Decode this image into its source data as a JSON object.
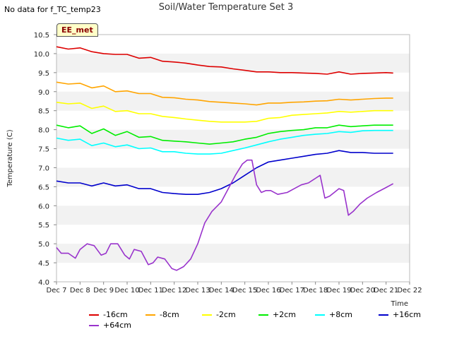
{
  "note": "No data for f_TC_temp23",
  "chart_data": {
    "type": "line",
    "title": "Soil/Water Temperature Set 3",
    "xlabel": "Time",
    "ylabel": "Temperature (C)",
    "badge": "EE_met",
    "x_ticks": [
      "Dec 7",
      "Dec 8",
      "Dec 9",
      "Dec 10",
      "Dec 11",
      "Dec 12",
      "Dec 13",
      "Dec 14",
      "Dec 15",
      "Dec 16",
      "Dec 17",
      "Dec 18",
      "Dec 19",
      "Dec 20",
      "Dec 21",
      "Dec 22"
    ],
    "xlim": [
      7,
      22
    ],
    "y_ticks": [
      "4.0",
      "4.5",
      "5.0",
      "5.5",
      "6.0",
      "6.5",
      "7.0",
      "7.5",
      "8.0",
      "8.5",
      "9.0",
      "9.5",
      "10.0",
      "10.5"
    ],
    "ylim": [
      4.0,
      10.5
    ],
    "grid": "horizontal bands",
    "legend_position": "bottom",
    "series": [
      {
        "name": "-16cm",
        "color": "#dd0000",
        "x": [
          7.0,
          7.5,
          8.0,
          8.5,
          9.0,
          9.5,
          10.0,
          10.5,
          11.0,
          11.5,
          12.0,
          12.5,
          13.0,
          13.5,
          14.0,
          14.5,
          15.0,
          15.5,
          16.0,
          16.5,
          17.0,
          17.5,
          18.0,
          18.5,
          19.0,
          19.5,
          20.0,
          20.5,
          21.0,
          21.3
        ],
        "y": [
          10.18,
          10.12,
          10.15,
          10.05,
          10.0,
          9.98,
          9.98,
          9.88,
          9.9,
          9.8,
          9.78,
          9.75,
          9.7,
          9.66,
          9.65,
          9.6,
          9.56,
          9.52,
          9.52,
          9.5,
          9.5,
          9.49,
          9.48,
          9.46,
          9.52,
          9.46,
          9.48,
          9.49,
          9.5,
          9.49
        ]
      },
      {
        "name": "-8cm",
        "color": "#ffa500",
        "x": [
          7.0,
          7.5,
          8.0,
          8.5,
          9.0,
          9.5,
          10.0,
          10.5,
          11.0,
          11.5,
          12.0,
          12.5,
          13.0,
          13.5,
          14.0,
          14.5,
          15.0,
          15.5,
          16.0,
          16.5,
          17.0,
          17.5,
          18.0,
          18.5,
          19.0,
          19.5,
          20.0,
          20.5,
          21.0,
          21.3
        ],
        "y": [
          9.25,
          9.2,
          9.22,
          9.1,
          9.15,
          9.0,
          9.02,
          8.95,
          8.95,
          8.85,
          8.84,
          8.8,
          8.78,
          8.74,
          8.72,
          8.7,
          8.68,
          8.65,
          8.7,
          8.7,
          8.72,
          8.73,
          8.75,
          8.76,
          8.8,
          8.78,
          8.8,
          8.82,
          8.83,
          8.83
        ]
      },
      {
        "name": "-2cm",
        "color": "#ffff00",
        "x": [
          7.0,
          7.5,
          8.0,
          8.5,
          9.0,
          9.5,
          10.0,
          10.5,
          11.0,
          11.5,
          12.0,
          12.5,
          13.0,
          13.5,
          14.0,
          14.5,
          15.0,
          15.5,
          16.0,
          16.5,
          17.0,
          17.5,
          18.0,
          18.5,
          19.0,
          19.5,
          20.0,
          20.5,
          21.0,
          21.3
        ],
        "y": [
          8.72,
          8.68,
          8.7,
          8.56,
          8.62,
          8.48,
          8.5,
          8.42,
          8.42,
          8.35,
          8.32,
          8.28,
          8.25,
          8.22,
          8.2,
          8.2,
          8.2,
          8.22,
          8.3,
          8.32,
          8.38,
          8.4,
          8.42,
          8.44,
          8.48,
          8.46,
          8.48,
          8.5,
          8.5,
          8.5
        ]
      },
      {
        "name": "+2cm",
        "color": "#00ee00",
        "x": [
          7.0,
          7.5,
          8.0,
          8.5,
          9.0,
          9.5,
          10.0,
          10.5,
          11.0,
          11.5,
          12.0,
          12.5,
          13.0,
          13.5,
          14.0,
          14.5,
          15.0,
          15.5,
          16.0,
          16.5,
          17.0,
          17.5,
          18.0,
          18.5,
          19.0,
          19.5,
          20.0,
          20.5,
          21.0,
          21.3
        ],
        "y": [
          8.12,
          8.05,
          8.1,
          7.9,
          8.02,
          7.85,
          7.95,
          7.8,
          7.82,
          7.72,
          7.7,
          7.68,
          7.65,
          7.62,
          7.65,
          7.68,
          7.75,
          7.8,
          7.9,
          7.95,
          7.98,
          8.0,
          8.05,
          8.05,
          8.12,
          8.08,
          8.1,
          8.12,
          8.12,
          8.12
        ]
      },
      {
        "name": "+8cm",
        "color": "#00ffff",
        "x": [
          7.0,
          7.5,
          8.0,
          8.5,
          9.0,
          9.5,
          10.0,
          10.5,
          11.0,
          11.5,
          12.0,
          12.5,
          13.0,
          13.5,
          14.0,
          14.5,
          15.0,
          15.5,
          16.0,
          16.5,
          17.0,
          17.5,
          18.0,
          18.5,
          19.0,
          19.5,
          20.0,
          20.5,
          21.0,
          21.3
        ],
        "y": [
          7.78,
          7.72,
          7.75,
          7.58,
          7.65,
          7.55,
          7.6,
          7.5,
          7.52,
          7.42,
          7.42,
          7.38,
          7.36,
          7.36,
          7.38,
          7.45,
          7.52,
          7.6,
          7.68,
          7.75,
          7.8,
          7.85,
          7.88,
          7.9,
          7.95,
          7.93,
          7.97,
          7.98,
          7.98,
          7.98
        ]
      },
      {
        "name": "+16cm",
        "color": "#0000cc",
        "x": [
          7.0,
          7.5,
          8.0,
          8.5,
          9.0,
          9.5,
          10.0,
          10.5,
          11.0,
          11.5,
          12.0,
          12.5,
          13.0,
          13.5,
          14.0,
          14.5,
          15.0,
          15.5,
          16.0,
          16.5,
          17.0,
          17.5,
          18.0,
          18.5,
          19.0,
          19.5,
          20.0,
          20.5,
          21.0,
          21.3
        ],
        "y": [
          6.65,
          6.6,
          6.6,
          6.52,
          6.6,
          6.52,
          6.55,
          6.45,
          6.45,
          6.35,
          6.32,
          6.3,
          6.3,
          6.35,
          6.45,
          6.6,
          6.8,
          7.0,
          7.15,
          7.2,
          7.25,
          7.3,
          7.35,
          7.38,
          7.45,
          7.4,
          7.4,
          7.38,
          7.38,
          7.38
        ]
      },
      {
        "name": "+64cm",
        "color": "#9933cc",
        "x": [
          7.0,
          7.2,
          7.5,
          7.8,
          8.0,
          8.3,
          8.6,
          8.9,
          9.1,
          9.3,
          9.6,
          9.9,
          10.1,
          10.3,
          10.6,
          10.9,
          11.1,
          11.3,
          11.6,
          11.9,
          12.1,
          12.4,
          12.7,
          13.0,
          13.3,
          13.6,
          14.0,
          14.3,
          14.6,
          14.9,
          15.1,
          15.3,
          15.5,
          15.7,
          15.9,
          16.1,
          16.4,
          16.8,
          17.1,
          17.4,
          17.7,
          18.0,
          18.2,
          18.4,
          18.6,
          18.8,
          19.0,
          19.2,
          19.4,
          19.6,
          19.9,
          20.2,
          20.6,
          21.0,
          21.3
        ],
        "y": [
          4.9,
          4.75,
          4.75,
          4.62,
          4.85,
          5.0,
          4.95,
          4.7,
          4.75,
          5.0,
          5.0,
          4.7,
          4.6,
          4.85,
          4.8,
          4.45,
          4.5,
          4.65,
          4.6,
          4.35,
          4.3,
          4.4,
          4.6,
          5.0,
          5.55,
          5.85,
          6.1,
          6.45,
          6.8,
          7.1,
          7.2,
          7.2,
          6.55,
          6.35,
          6.4,
          6.4,
          6.3,
          6.35,
          6.45,
          6.55,
          6.6,
          6.72,
          6.8,
          6.2,
          6.25,
          6.35,
          6.45,
          6.4,
          5.75,
          5.85,
          6.05,
          6.2,
          6.35,
          6.48,
          6.58
        ]
      }
    ]
  }
}
